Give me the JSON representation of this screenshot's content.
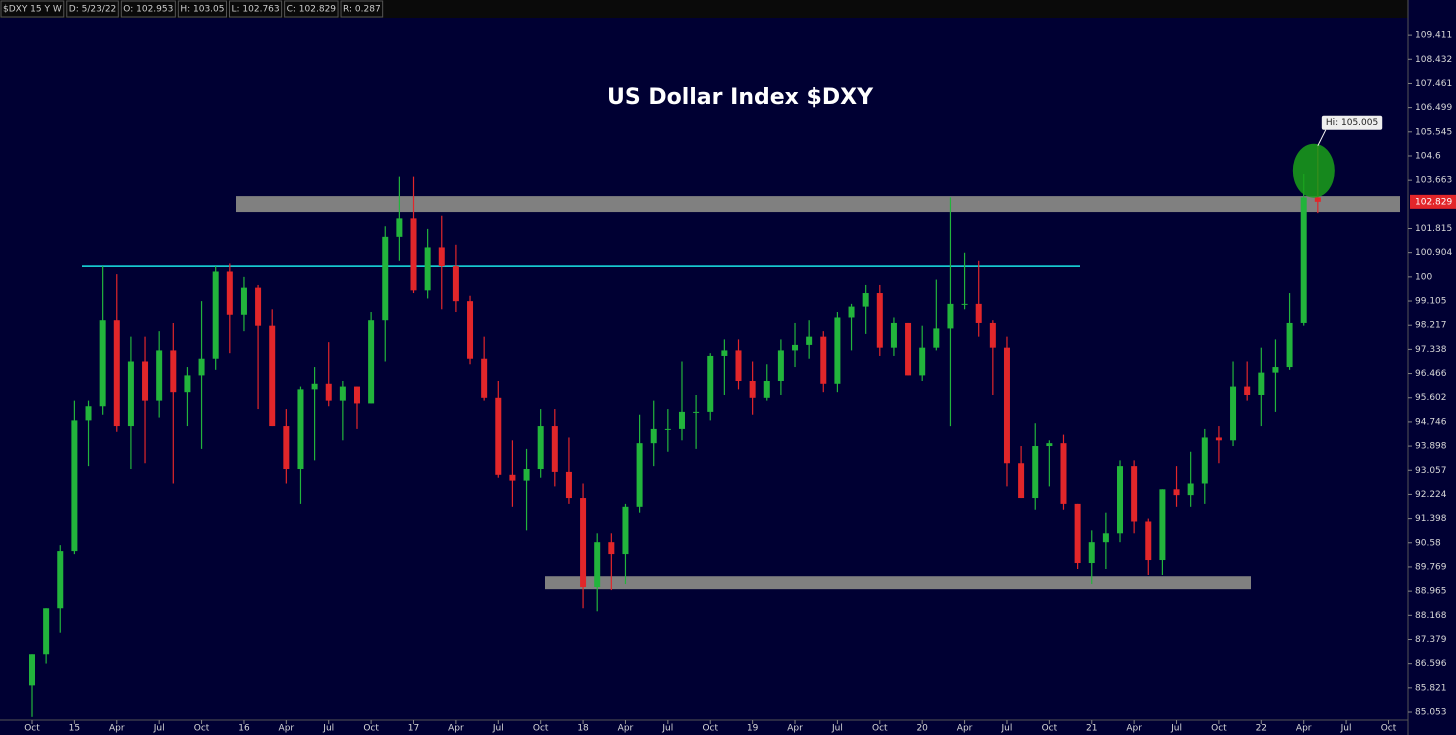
{
  "chart_data": {
    "type": "candlestick",
    "title": "US Dollar Index $DXY",
    "info": [
      "$DXY 15 Y W",
      "D: 5/23/22",
      "O: 102.953",
      "H: 103.05",
      "L: 102.763",
      "C: 102.829",
      "R: 0.287"
    ],
    "categories": [
      "Oct",
      null,
      null,
      "15",
      null,
      null,
      "Apr",
      null,
      null,
      "Jul",
      null,
      null,
      "Oct",
      null,
      null,
      "16",
      null,
      null,
      "Apr",
      null,
      null,
      "Jul",
      null,
      null,
      "Oct",
      null,
      null,
      "17",
      null,
      null,
      "Apr",
      null,
      null,
      "Jul",
      null,
      null,
      "Oct",
      null,
      null,
      "18",
      null,
      null,
      "Apr",
      null,
      null,
      "Jul",
      null,
      null,
      "Oct",
      null,
      null,
      "19",
      null,
      null,
      "Apr",
      null,
      null,
      "Jul",
      null,
      null,
      "Oct",
      null,
      null,
      "20",
      null,
      null,
      "Apr",
      null,
      null,
      "Jul",
      null,
      null,
      "Oct",
      null,
      null,
      "21",
      null,
      null,
      "Apr",
      null,
      null,
      "Jul",
      null,
      null,
      "Oct",
      null,
      null,
      "22",
      null,
      null,
      "Apr",
      null,
      null,
      "Jul",
      null,
      null,
      "Oct"
    ],
    "open": [
      85.9,
      86.9,
      88.4,
      90.3,
      94.8,
      95.3,
      98.4,
      94.6,
      96.9,
      95.5,
      97.3,
      95.8,
      96.4,
      97.0,
      100.2,
      98.6,
      99.6,
      98.2,
      94.6,
      93.1,
      95.9,
      96.1,
      95.5,
      96.0,
      95.4,
      98.4,
      101.5,
      102.2,
      99.5,
      101.1,
      100.4,
      99.1,
      97.0,
      95.6,
      92.9,
      92.7,
      93.1,
      94.6,
      93.0,
      92.1,
      89.1,
      90.6,
      90.2,
      91.8,
      94.0,
      94.5,
      94.5,
      95.1,
      95.1,
      97.1,
      97.3,
      96.2,
      95.6,
      96.2,
      97.3,
      97.5,
      97.8,
      96.1,
      98.5,
      98.9,
      99.4,
      97.4,
      98.3,
      96.4,
      97.4,
      98.1,
      99.0,
      99.0,
      98.3,
      97.4,
      93.3,
      92.1,
      93.9,
      94.0,
      91.9,
      89.9,
      90.6,
      90.9,
      93.2,
      91.3,
      90.0,
      92.4,
      92.2,
      92.6,
      94.2,
      94.1,
      96.0,
      95.7,
      96.5,
      96.7,
      98.3,
      103.0,
      null,
      null,
      null,
      null,
      null
    ],
    "high": [
      86.9,
      88.4,
      90.5,
      95.5,
      95.5,
      100.4,
      100.1,
      97.8,
      97.8,
      98.0,
      98.3,
      96.7,
      99.1,
      100.4,
      100.5,
      100.0,
      99.7,
      98.8,
      95.2,
      96.0,
      96.7,
      97.6,
      96.2,
      96.0,
      98.7,
      101.9,
      103.8,
      103.8,
      101.8,
      102.3,
      101.2,
      99.3,
      97.8,
      96.2,
      94.1,
      93.8,
      95.2,
      95.2,
      94.2,
      92.6,
      90.9,
      90.9,
      91.9,
      95.0,
      95.5,
      95.2,
      96.9,
      95.7,
      97.2,
      97.7,
      97.7,
      96.9,
      96.8,
      97.7,
      98.3,
      98.4,
      98.0,
      98.7,
      99.0,
      99.7,
      99.7,
      98.5,
      98.3,
      98.2,
      99.9,
      103.0,
      100.9,
      100.6,
      98.4,
      97.8,
      93.9,
      94.7,
      94.1,
      94.3,
      91.9,
      91.0,
      91.6,
      93.4,
      93.4,
      91.4,
      92.4,
      93.2,
      93.7,
      94.5,
      94.6,
      96.9,
      96.9,
      97.4,
      97.7,
      99.4,
      103.9,
      105.0,
      null,
      null,
      null,
      null,
      null
    ],
    "low": [
      84.9,
      86.6,
      87.6,
      90.2,
      93.2,
      95.0,
      94.4,
      93.1,
      93.3,
      94.9,
      92.6,
      94.6,
      93.8,
      96.6,
      97.2,
      98.0,
      95.2,
      94.6,
      92.6,
      91.9,
      93.4,
      95.3,
      94.1,
      94.5,
      95.4,
      96.9,
      100.6,
      99.4,
      99.2,
      98.8,
      98.7,
      96.8,
      95.5,
      92.8,
      91.8,
      91.0,
      92.8,
      92.5,
      91.9,
      88.4,
      88.3,
      89.0,
      89.2,
      91.6,
      93.2,
      93.7,
      94.1,
      93.8,
      94.8,
      95.7,
      95.9,
      95.0,
      95.5,
      95.7,
      96.7,
      97.0,
      95.8,
      95.8,
      97.3,
      97.9,
      97.1,
      97.1,
      96.4,
      96.2,
      97.3,
      94.6,
      98.8,
      97.8,
      95.7,
      92.5,
      92.1,
      91.7,
      92.5,
      91.7,
      89.7,
      89.2,
      89.7,
      90.6,
      90.9,
      89.5,
      89.5,
      91.8,
      91.8,
      91.9,
      93.3,
      93.9,
      95.5,
      94.6,
      95.1,
      96.6,
      98.2,
      102.4,
      null,
      null,
      null,
      null,
      null
    ],
    "close": [
      86.9,
      88.4,
      90.3,
      94.8,
      95.3,
      98.4,
      94.6,
      96.9,
      95.5,
      97.3,
      95.8,
      96.4,
      97.0,
      100.2,
      98.6,
      99.6,
      98.2,
      94.6,
      93.1,
      95.9,
      96.1,
      95.5,
      96.0,
      95.4,
      98.4,
      101.5,
      102.2,
      99.5,
      101.1,
      100.4,
      99.1,
      97.0,
      95.6,
      92.9,
      92.7,
      93.1,
      94.6,
      93.0,
      92.1,
      89.1,
      90.6,
      90.2,
      91.8,
      94.0,
      94.5,
      94.5,
      95.1,
      95.1,
      97.1,
      97.3,
      96.2,
      95.6,
      96.2,
      97.3,
      97.5,
      97.8,
      96.1,
      98.5,
      98.9,
      99.4,
      97.4,
      98.3,
      96.4,
      97.4,
      98.1,
      99.0,
      99.0,
      98.3,
      97.4,
      93.3,
      92.1,
      93.9,
      94.0,
      91.9,
      89.9,
      90.6,
      90.9,
      93.2,
      91.3,
      90.0,
      92.4,
      92.2,
      92.6,
      94.2,
      94.1,
      96.0,
      95.7,
      96.5,
      96.7,
      98.3,
      103.0,
      102.83,
      null,
      null,
      null,
      null,
      null
    ],
    "up_color": "#22b43c",
    "down_color": "#e2262a",
    "log_scale": true,
    "ylim": [
      84.8,
      110.85
    ],
    "yticks": [
      85.053,
      85.821,
      86.596,
      87.379,
      88.168,
      88.965,
      89.769,
      90.58,
      91.398,
      92.224,
      93.057,
      93.898,
      94.746,
      95.602,
      96.466,
      97.338,
      98.217,
      99.105,
      100,
      100.904,
      101.815,
      103.663,
      104.6,
      105.545,
      106.499,
      107.461,
      108.432,
      109.411
    ],
    "grid": false,
    "bands": [
      {
        "ylim": [
          102.44,
          103.05
        ],
        "color": "#808080"
      },
      {
        "ylim": [
          89.03,
          89.46
        ],
        "color": "#808080"
      }
    ],
    "hline": {
      "value": 100.4,
      "color": "#19e6e6"
    },
    "high_label": "Hi: 105.005",
    "last_label": "102.829",
    "last_color": "#e2262a"
  }
}
